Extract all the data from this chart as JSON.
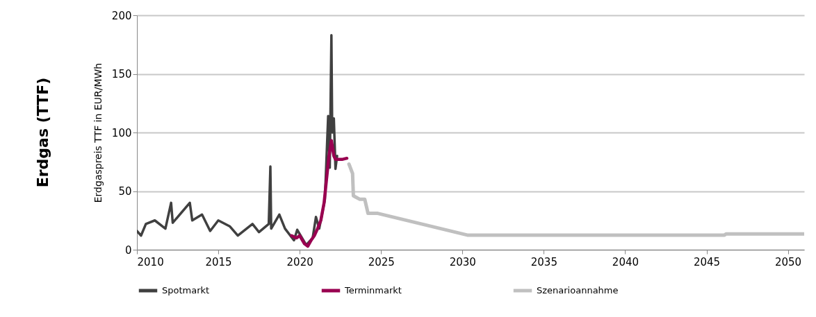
{
  "chart_data": {
    "type": "line",
    "title": "Erdgas (TTF)",
    "ylabel": "Erdgaspreis TTF in EUR/MWh",
    "xlim": [
      2010,
      2051
    ],
    "xticks": [
      2010,
      2015,
      2020,
      2025,
      2030,
      2035,
      2040,
      2045,
      2050
    ],
    "ylim": [
      0,
      200
    ],
    "yticks": [
      0,
      50,
      100,
      150,
      200
    ],
    "grid": "y",
    "legend": "bottom",
    "marker": "none",
    "line_style": "solid",
    "series": [
      {
        "name": "Spotmarkt",
        "color": "#404040",
        "x": [
          2010.0,
          2010.25,
          2010.55,
          2011.1,
          2011.75,
          2012.1,
          2012.2,
          2013.25,
          2013.4,
          2014.0,
          2014.5,
          2015.0,
          2015.7,
          2016.2,
          2017.1,
          2017.5,
          2018.1,
          2018.2,
          2018.25,
          2018.75,
          2019.1,
          2019.65,
          2019.85,
          2020.4,
          2020.8,
          2021.0,
          2021.2,
          2021.55,
          2021.75,
          2021.85,
          2021.95,
          2022.0,
          2022.1,
          2022.2,
          2022.3
        ],
        "values": [
          16,
          12,
          22,
          25,
          18,
          40,
          23,
          40,
          25,
          30,
          16,
          25,
          20,
          12,
          22,
          15,
          22,
          71,
          18,
          30,
          18,
          8,
          17,
          4,
          10,
          28,
          18,
          43,
          114,
          70,
          183,
          100,
          112,
          69,
          80
        ]
      },
      {
        "name": "Terminmarkt",
        "color": "#990050",
        "x": [
          2019.5,
          2019.8,
          2020.0,
          2020.3,
          2020.5,
          2020.7,
          2020.9,
          2021.1,
          2021.3,
          2021.5,
          2021.65,
          2021.8,
          2021.95,
          2022.1,
          2022.2,
          2022.6,
          2022.9
        ],
        "values": [
          12,
          10,
          12,
          5,
          3,
          8,
          12,
          18,
          25,
          40,
          60,
          80,
          93,
          80,
          77,
          77,
          78
        ]
      },
      {
        "name": "Szenarioannahme",
        "color": "#c0c0c0",
        "x": [
          2023.03,
          2023.25,
          2023.3,
          2023.7,
          2024.0,
          2024.2,
          2024.8,
          2030.3,
          2046.1,
          2046.2,
          2051
        ],
        "values": [
          73,
          65,
          46,
          43,
          43,
          31,
          31,
          12.5,
          12.5,
          13.5,
          13.5
        ]
      }
    ]
  }
}
